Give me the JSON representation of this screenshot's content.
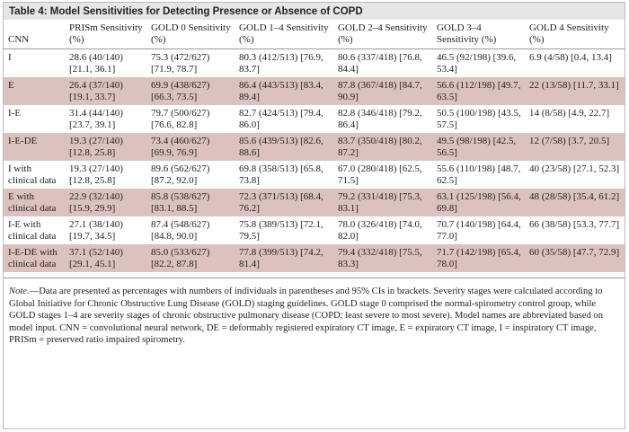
{
  "table": {
    "title": "Table 4: Model Sensitivities for Detecting Presence or Absence of COPD",
    "header": [
      "CNN",
      "PRISm Sensitivity (%)",
      "GOLD 0 Sensitivity (%)",
      "GOLD 1–4 Sensitivity (%)",
      "GOLD 2–4 Sensitivity (%)",
      "GOLD 3–4 Sensitivity (%)",
      "GOLD 4 Sensitivity (%)"
    ],
    "rows": [
      [
        "I",
        "28.6 (40/140) [21.1, 36.1]",
        "75.3 (472/627) [71.9, 78.7]",
        "80.3 (412/513) [76.9, 83.7]",
        "80.6 (337/418) [76.8, 84.4]",
        "46.5 (92/198) [39.6, 53.4]",
        "6.9 (4/58) [0.4, 13.4]"
      ],
      [
        "E",
        "26.4 (37/140) [19.1, 33.7]",
        "69.9 (438/627) [66.3, 73.5]",
        "86.4 (443/513) [83.4, 89.4]",
        "87.8 (367/418) [84.7, 90.9]",
        "56.6 (112/198) [49.7, 63.5]",
        "22 (13/58) [11.7, 33.1]"
      ],
      [
        "I-E",
        "31.4 (44/140) [23.7, 39.1]",
        "79.7 (500/627) [76.6, 82.8]",
        "82.7 (424/513) [79.4, 86.0]",
        "82.8 (346/418) [79.2, 86.4]",
        "50.5 (100/198) [43.5, 57.5]",
        "14 (8/58) [4.9, 22.7]"
      ],
      [
        "I-E-DE",
        "19.3 (27/140) [12.8, 25.8]",
        "73.4 (460/627) [69.9, 76.9]",
        "85.6 (439/513) [82.6, 88.6]",
        "83.7 (350/418) [80.2, 87.2]",
        "49.5 (98/198) [42.5, 56.5]",
        "12 (7/58) [3.7, 20.5]"
      ],
      [
        "I with clinical data",
        "19.3 (27/140) [12.8, 25.8]",
        "89.6 (562/627) [87.2, 92.0]",
        "69.8 (358/513) [65.8, 73.8]",
        "67.0 (280/418) [62.5, 71.5]",
        "55.6 (110/198) [48.7, 62.5]",
        "40 (23/58) [27.1, 52.3]"
      ],
      [
        "E with clinical data",
        "22.9 (32/140) [15.9, 29.9]",
        "85.8 (538/627) [83.1, 88.5]",
        "72.3 (371/513) [68.4, 76.2]",
        "79.2 (331/418) [75.3, 83.1]",
        "63.1 (125/198) [56.4, 69.8]",
        "48 (28/58) [35.4, 61.2]"
      ],
      [
        "I-E with clinical data",
        "27.1 (38/140) [19.7, 34.5]",
        "87.4 (548/627) [84.8, 90.0]",
        "75.8 (389/513) [72.1, 79.5]",
        "78.0 (326/418) [74.0, 82.0]",
        "70.7 (140/198) [64.4, 77.0]",
        "66 (38/58) [53.3, 77.7]"
      ],
      [
        "I-E-DE with clinical data",
        "37.1 (52/140) [29.1, 45.1]",
        "85.0 (533/627) [82.2, 87.8]",
        "77.8 (399/513) [74.2, 81.4]",
        "79.4 (332/418) [75.5, 83.3]",
        "71.7 (142/198) [65.4, 78.0]",
        "60 (35/58) [47.7, 72.9]"
      ]
    ],
    "note_label": "Note.",
    "note": "—Data are presented as percentages with numbers of individuals in parentheses and 95% CIs in brackets. Severity stages were calculated according to Global Initiative for Chronic Obstructive Lung Disease (GOLD) staging guidelines. GOLD stage 0 comprised the normal-spirometry control group, while GOLD stages 1–4 are severity stages of chronic obstructive pulmonary disease (COPD; least severe to most severe). Model names are abbreviated based on model input. CNN = convolutional neural network, DE = deformably registered expiratory CT image, E = expiratory CT image, I = inspiratory CT image, PRISm = preserved ratio impaired spirometry."
  }
}
